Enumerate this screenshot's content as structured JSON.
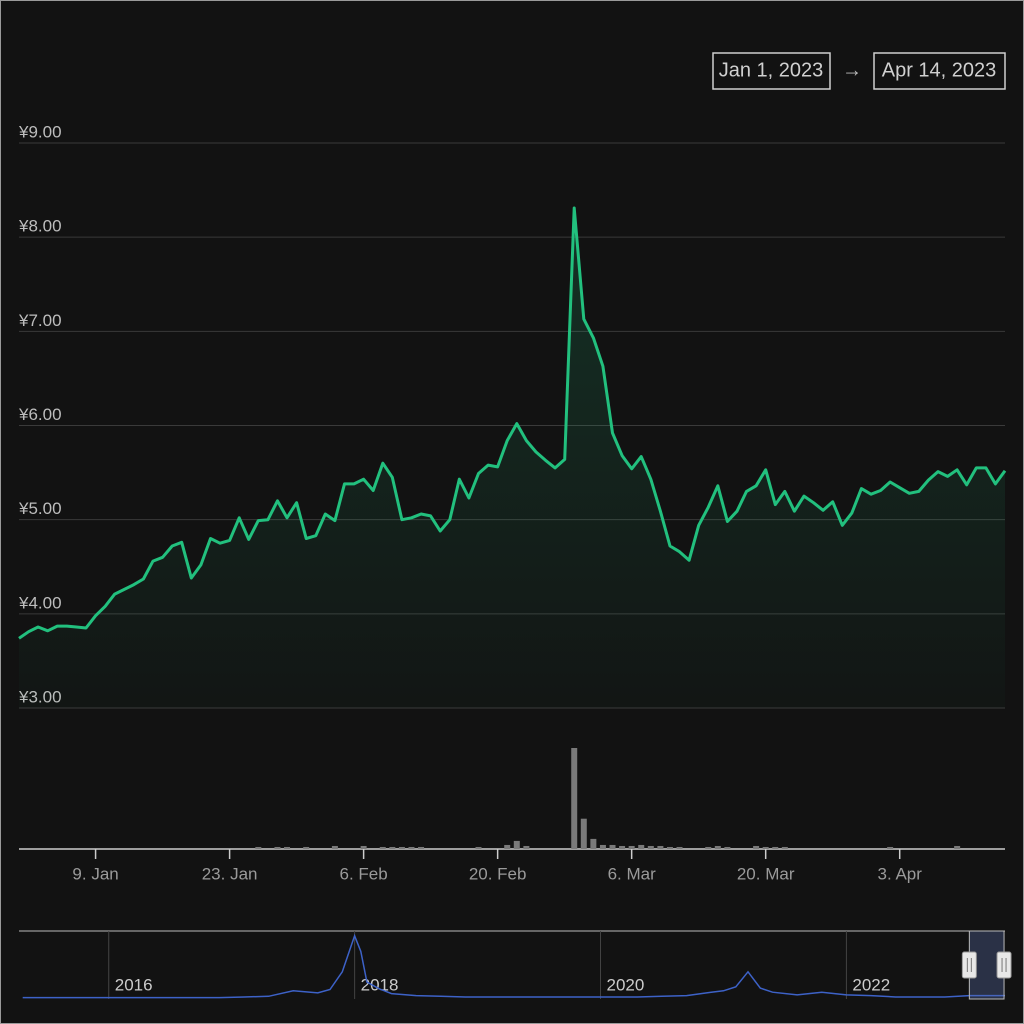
{
  "chart_data": {
    "type": "line",
    "color": "#22c07e",
    "range_selector": {
      "from": "Jan 1, 2023",
      "separator": "→",
      "to": "Apr 14, 2023"
    },
    "x": [
      "2023-01-01",
      "2023-01-02",
      "2023-01-03",
      "2023-01-04",
      "2023-01-05",
      "2023-01-06",
      "2023-01-07",
      "2023-01-08",
      "2023-01-09",
      "2023-01-10",
      "2023-01-11",
      "2023-01-12",
      "2023-01-13",
      "2023-01-14",
      "2023-01-15",
      "2023-01-16",
      "2023-01-17",
      "2023-01-18",
      "2023-01-19",
      "2023-01-20",
      "2023-01-21",
      "2023-01-22",
      "2023-01-23",
      "2023-01-24",
      "2023-01-25",
      "2023-01-26",
      "2023-01-27",
      "2023-01-28",
      "2023-01-29",
      "2023-01-30",
      "2023-01-31",
      "2023-02-01",
      "2023-02-02",
      "2023-02-03",
      "2023-02-04",
      "2023-02-05",
      "2023-02-06",
      "2023-02-07",
      "2023-02-08",
      "2023-02-09",
      "2023-02-10",
      "2023-02-11",
      "2023-02-12",
      "2023-02-13",
      "2023-02-14",
      "2023-02-15",
      "2023-02-16",
      "2023-02-17",
      "2023-02-18",
      "2023-02-19",
      "2023-02-20",
      "2023-02-21",
      "2023-02-22",
      "2023-02-23",
      "2023-02-24",
      "2023-02-25",
      "2023-02-26",
      "2023-02-27",
      "2023-02-28",
      "2023-03-01",
      "2023-03-02",
      "2023-03-03",
      "2023-03-04",
      "2023-03-05",
      "2023-03-06",
      "2023-03-07",
      "2023-03-08",
      "2023-03-09",
      "2023-03-10",
      "2023-03-11",
      "2023-03-12",
      "2023-03-13",
      "2023-03-14",
      "2023-03-15",
      "2023-03-16",
      "2023-03-17",
      "2023-03-18",
      "2023-03-19",
      "2023-03-20",
      "2023-03-21",
      "2023-03-22",
      "2023-03-23",
      "2023-03-24",
      "2023-03-25",
      "2023-03-26",
      "2023-03-27",
      "2023-03-28",
      "2023-03-29",
      "2023-03-30",
      "2023-03-31",
      "2023-04-01",
      "2023-04-02",
      "2023-04-03",
      "2023-04-04",
      "2023-04-05",
      "2023-04-06",
      "2023-04-07",
      "2023-04-08",
      "2023-04-09",
      "2023-04-10",
      "2023-04-11",
      "2023-04-12",
      "2023-04-13",
      "2023-04-14"
    ],
    "values": [
      3.74,
      3.81,
      3.86,
      3.82,
      3.87,
      3.87,
      3.86,
      3.85,
      3.98,
      4.08,
      4.21,
      4.26,
      4.31,
      4.37,
      4.56,
      4.6,
      4.72,
      4.76,
      4.38,
      4.52,
      4.8,
      4.75,
      4.78,
      5.02,
      4.79,
      4.99,
      5.0,
      5.2,
      5.02,
      5.18,
      4.8,
      4.83,
      5.06,
      4.99,
      5.38,
      5.38,
      5.43,
      5.31,
      5.6,
      5.45,
      5.0,
      5.02,
      5.06,
      5.04,
      4.88,
      5.0,
      5.43,
      5.23,
      5.49,
      5.58,
      5.56,
      5.84,
      6.02,
      5.84,
      5.72,
      5.63,
      5.55,
      5.64,
      8.31,
      7.13,
      6.93,
      6.63,
      5.92,
      5.68,
      5.54,
      5.67,
      5.43,
      5.09,
      4.72,
      4.66,
      4.57,
      4.94,
      5.13,
      5.36,
      4.98,
      5.09,
      5.3,
      5.36,
      5.53,
      5.16,
      5.3,
      5.09,
      5.25,
      5.18,
      5.1,
      5.19,
      4.94,
      5.07,
      5.33,
      5.27,
      5.31,
      5.4,
      5.34,
      5.28,
      5.3,
      5.42,
      5.51,
      5.46,
      5.53,
      5.37,
      5.55,
      5.55,
      5.38,
      5.52
    ],
    "xlim": [
      "2023-01-01",
      "2023-04-14"
    ],
    "xticks": [
      {
        "value": "2023-01-09",
        "label": "9. Jan"
      },
      {
        "value": "2023-01-23",
        "label": "23. Jan"
      },
      {
        "value": "2023-02-06",
        "label": "6. Feb"
      },
      {
        "value": "2023-02-20",
        "label": "20. Feb"
      },
      {
        "value": "2023-03-06",
        "label": "6. Mar"
      },
      {
        "value": "2023-03-20",
        "label": "20. Mar"
      },
      {
        "value": "2023-04-03",
        "label": "3. Apr"
      }
    ],
    "ylim": [
      3,
      9
    ],
    "yticks": [
      {
        "value": 3,
        "label": "¥3.00"
      },
      {
        "value": 4,
        "label": "¥4.00"
      },
      {
        "value": 5,
        "label": "¥5.00"
      },
      {
        "value": 6,
        "label": "¥6.00"
      },
      {
        "value": 7,
        "label": "¥7.00"
      },
      {
        "value": 8,
        "label": "¥8.00"
      },
      {
        "value": 9,
        "label": "¥9.00"
      }
    ],
    "grid": true,
    "volume": {
      "type": "bar",
      "color": "#7a7a7a",
      "values": [
        0,
        0,
        0,
        0,
        0,
        0,
        0,
        0,
        0,
        0,
        0,
        0,
        0,
        0,
        0,
        0,
        0,
        0,
        0,
        0,
        0,
        0,
        0,
        0,
        0,
        2,
        0,
        2,
        2,
        0,
        2,
        0,
        0,
        3,
        0,
        0,
        3,
        0,
        2,
        2,
        2,
        2,
        2,
        0,
        0,
        0,
        0,
        0,
        2,
        0,
        0,
        4,
        8,
        3,
        0,
        0,
        0,
        0,
        100,
        30,
        10,
        4,
        4,
        3,
        3,
        4,
        3,
        3,
        2,
        2,
        0,
        0,
        2,
        3,
        2,
        0,
        0,
        3,
        2,
        2,
        2,
        0,
        0,
        0,
        0,
        0,
        0,
        0,
        0,
        0,
        0,
        2,
        0,
        0,
        0,
        0,
        0,
        0,
        3,
        0,
        0,
        0,
        0,
        0
      ]
    },
    "navigator": {
      "type": "line",
      "color": "#3d62c8",
      "x": [
        2015.3,
        2015.5,
        2015.7,
        2015.9,
        2016.1,
        2016.3,
        2016.5,
        2016.7,
        2016.9,
        2017.1,
        2017.3,
        2017.5,
        2017.7,
        2017.8,
        2017.9,
        2018.0,
        2018.05,
        2018.1,
        2018.2,
        2018.3,
        2018.5,
        2018.7,
        2018.9,
        2019.1,
        2019.3,
        2019.5,
        2019.7,
        2019.9,
        2020.1,
        2020.3,
        2020.5,
        2020.7,
        2020.9,
        2021.0,
        2021.1,
        2021.2,
        2021.3,
        2021.4,
        2021.6,
        2021.8,
        2022.0,
        2022.2,
        2022.4,
        2022.6,
        2022.8,
        2023.0,
        2023.29
      ],
      "values": [
        2,
        2,
        2,
        2,
        2,
        2,
        2,
        2,
        2,
        3,
        4,
        12,
        9,
        14,
        40,
        93,
        70,
        25,
        15,
        8,
        5,
        4,
        3,
        3,
        3,
        3,
        3,
        3,
        3,
        3,
        4,
        5,
        10,
        12,
        18,
        40,
        16,
        10,
        6,
        10,
        6,
        5,
        3,
        3,
        3,
        5,
        5
      ],
      "xlim": [
        2015.27,
        2023.29
      ],
      "ylim": [
        0,
        100
      ],
      "xticks": [
        2016,
        2018,
        2020,
        2022
      ]
    }
  }
}
